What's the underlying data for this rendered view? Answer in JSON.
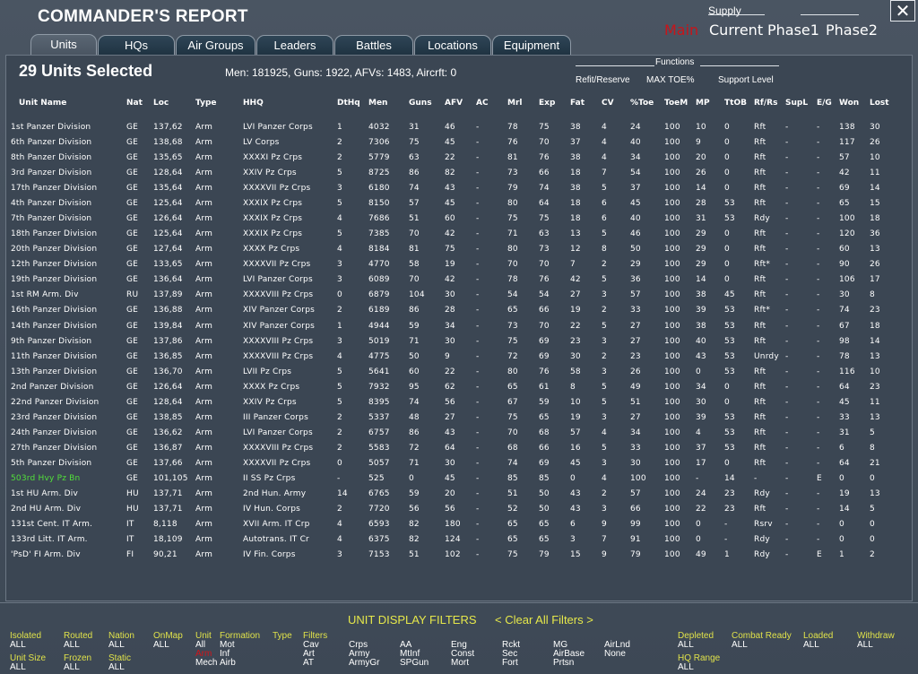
{
  "title": "COMMANDER'S REPORT",
  "supply": {
    "label": "Supply",
    "options": [
      {
        "label": "Main",
        "active": true
      },
      {
        "label": "Current",
        "active": false
      },
      {
        "label": "Phase1",
        "active": false
      },
      {
        "label": "Phase2",
        "active": false
      }
    ]
  },
  "close_label": "✕",
  "tabs": [
    {
      "label": "Units",
      "active": true
    },
    {
      "label": "HQs",
      "active": false
    },
    {
      "label": "Air Groups",
      "active": false
    },
    {
      "label": "Leaders",
      "active": false
    },
    {
      "label": "Battles",
      "active": false
    },
    {
      "label": "Locations",
      "active": false
    },
    {
      "label": "Equipment",
      "active": false
    }
  ],
  "selection": "29 Units Selected",
  "summary": "Men: 181925, Guns: 1922, AFVs: 1483, Aircrft: 0",
  "functions": {
    "label": "Functions",
    "options": [
      "Refit/Reserve",
      "MAX TOE%",
      "Support Level"
    ]
  },
  "columns": [
    "Unit Name",
    "Nat",
    "Loc",
    "Type",
    "HHQ",
    "DtHq",
    "Men",
    "Guns",
    "AFV",
    "AC",
    "Mrl",
    "Exp",
    "Fat",
    "CV",
    "%Toe",
    "ToeM",
    "MP",
    "TtOB",
    "Rf/Rs",
    "SupL",
    "E/G",
    "Won",
    "Lost"
  ],
  "rows": [
    [
      "1st Panzer Division",
      "GE",
      "137,62",
      "Arm",
      "LVI Panzer Corps",
      "1",
      "4032",
      "31",
      "46",
      "-",
      "78",
      "75",
      "38",
      "4",
      "24",
      "100",
      "10",
      "0",
      "Rft",
      "-",
      "-",
      "138",
      "30"
    ],
    [
      "6th Panzer Division",
      "GE",
      "138,68",
      "Arm",
      "LV Corps",
      "2",
      "7306",
      "75",
      "45",
      "-",
      "76",
      "70",
      "37",
      "4",
      "40",
      "100",
      "9",
      "0",
      "Rft",
      "-",
      "-",
      "117",
      "26"
    ],
    [
      "8th Panzer Division",
      "GE",
      "135,65",
      "Arm",
      "XXXXI Pz Crps",
      "2",
      "5779",
      "63",
      "22",
      "-",
      "81",
      "76",
      "38",
      "4",
      "34",
      "100",
      "20",
      "0",
      "Rft",
      "-",
      "-",
      "57",
      "10"
    ],
    [
      "3rd Panzer Division",
      "GE",
      "128,64",
      "Arm",
      "XXIV Pz Crps",
      "5",
      "8725",
      "86",
      "82",
      "-",
      "73",
      "66",
      "18",
      "7",
      "54",
      "100",
      "26",
      "0",
      "Rft",
      "-",
      "-",
      "42",
      "11"
    ],
    [
      "17th Panzer Division",
      "GE",
      "135,64",
      "Arm",
      "XXXXVII Pz Crps",
      "3",
      "6180",
      "74",
      "43",
      "-",
      "79",
      "74",
      "38",
      "5",
      "37",
      "100",
      "14",
      "0",
      "Rft",
      "-",
      "-",
      "69",
      "14"
    ],
    [
      "4th Panzer Division",
      "GE",
      "125,64",
      "Arm",
      "XXXIX Pz Crps",
      "5",
      "8150",
      "57",
      "45",
      "-",
      "80",
      "64",
      "18",
      "6",
      "45",
      "100",
      "28",
      "53",
      "Rft",
      "-",
      "-",
      "65",
      "15"
    ],
    [
      "7th Panzer Division",
      "GE",
      "126,64",
      "Arm",
      "XXXIX Pz Crps",
      "4",
      "7686",
      "51",
      "60",
      "-",
      "75",
      "75",
      "18",
      "6",
      "40",
      "100",
      "31",
      "53",
      "Rdy",
      "-",
      "-",
      "100",
      "18"
    ],
    [
      "18th Panzer Division",
      "GE",
      "125,64",
      "Arm",
      "XXXIX Pz Crps",
      "5",
      "7385",
      "70",
      "42",
      "-",
      "71",
      "63",
      "13",
      "5",
      "46",
      "100",
      "29",
      "0",
      "Rft",
      "-",
      "-",
      "120",
      "36"
    ],
    [
      "20th Panzer Division",
      "GE",
      "127,64",
      "Arm",
      "XXXX Pz Crps",
      "4",
      "8184",
      "81",
      "75",
      "-",
      "80",
      "73",
      "12",
      "8",
      "50",
      "100",
      "29",
      "0",
      "Rft",
      "-",
      "-",
      "60",
      "13"
    ],
    [
      "12th Panzer Division",
      "GE",
      "133,65",
      "Arm",
      "XXXXVII Pz Crps",
      "3",
      "4770",
      "58",
      "19",
      "-",
      "70",
      "70",
      "7",
      "2",
      "29",
      "100",
      "29",
      "0",
      "Rft*",
      "-",
      "-",
      "90",
      "26"
    ],
    [
      "19th Panzer Division",
      "GE",
      "136,64",
      "Arm",
      "LVI Panzer Corps",
      "3",
      "6089",
      "70",
      "42",
      "-",
      "78",
      "76",
      "42",
      "5",
      "36",
      "100",
      "14",
      "0",
      "Rft",
      "-",
      "-",
      "106",
      "17"
    ],
    [
      "1st RM Arm. Div",
      "RU",
      "137,89",
      "Arm",
      "XXXXVIII Pz Crps",
      "0",
      "6879",
      "104",
      "30",
      "-",
      "54",
      "54",
      "27",
      "3",
      "57",
      "100",
      "38",
      "45",
      "Rft",
      "-",
      "-",
      "30",
      "8"
    ],
    [
      "16th Panzer Division",
      "GE",
      "136,88",
      "Arm",
      "XIV Panzer Corps",
      "2",
      "6189",
      "86",
      "28",
      "-",
      "65",
      "66",
      "19",
      "2",
      "33",
      "100",
      "39",
      "53",
      "Rft*",
      "-",
      "-",
      "74",
      "23"
    ],
    [
      "14th Panzer Division",
      "GE",
      "139,84",
      "Arm",
      "XIV Panzer Corps",
      "1",
      "4944",
      "59",
      "34",
      "-",
      "73",
      "70",
      "22",
      "5",
      "27",
      "100",
      "38",
      "53",
      "Rft",
      "-",
      "-",
      "67",
      "18"
    ],
    [
      "9th Panzer Division",
      "GE",
      "137,86",
      "Arm",
      "XXXXVIII Pz Crps",
      "3",
      "5019",
      "71",
      "30",
      "-",
      "75",
      "69",
      "23",
      "3",
      "27",
      "100",
      "40",
      "53",
      "Rft",
      "-",
      "-",
      "98",
      "14"
    ],
    [
      "11th Panzer Division",
      "GE",
      "136,85",
      "Arm",
      "XXXXVIII Pz Crps",
      "4",
      "4775",
      "50",
      "9",
      "-",
      "72",
      "69",
      "30",
      "2",
      "23",
      "100",
      "43",
      "53",
      "Unrdy",
      "-",
      "-",
      "78",
      "13"
    ],
    [
      "13th Panzer Division",
      "GE",
      "136,70",
      "Arm",
      "LVII Pz Crps",
      "5",
      "5641",
      "60",
      "22",
      "-",
      "80",
      "76",
      "58",
      "3",
      "26",
      "100",
      "0",
      "53",
      "Rft",
      "-",
      "-",
      "116",
      "10"
    ],
    [
      "2nd Panzer Division",
      "GE",
      "126,64",
      "Arm",
      "XXXX Pz Crps",
      "5",
      "7932",
      "95",
      "62",
      "-",
      "65",
      "61",
      "8",
      "5",
      "49",
      "100",
      "34",
      "0",
      "Rft",
      "-",
      "-",
      "64",
      "23"
    ],
    [
      "22nd Panzer Division",
      "GE",
      "128,64",
      "Arm",
      "XXIV Pz Crps",
      "5",
      "8395",
      "74",
      "56",
      "-",
      "67",
      "59",
      "10",
      "5",
      "51",
      "100",
      "30",
      "0",
      "Rft",
      "-",
      "-",
      "45",
      "11"
    ],
    [
      "23rd Panzer Division",
      "GE",
      "138,85",
      "Arm",
      "III Panzer Corps",
      "2",
      "5337",
      "48",
      "27",
      "-",
      "75",
      "65",
      "19",
      "3",
      "27",
      "100",
      "39",
      "53",
      "Rft",
      "-",
      "-",
      "33",
      "13"
    ],
    [
      "24th Panzer Division",
      "GE",
      "136,62",
      "Arm",
      "LVI Panzer Corps",
      "2",
      "6757",
      "86",
      "43",
      "-",
      "70",
      "68",
      "57",
      "4",
      "34",
      "100",
      "4",
      "53",
      "Rft",
      "-",
      "-",
      "31",
      "5"
    ],
    [
      "27th Panzer Division",
      "GE",
      "136,87",
      "Arm",
      "XXXXVIII Pz Crps",
      "2",
      "5583",
      "72",
      "64",
      "-",
      "68",
      "66",
      "16",
      "5",
      "33",
      "100",
      "37",
      "53",
      "Rft",
      "-",
      "-",
      "6",
      "8"
    ],
    [
      "5th Panzer Division",
      "GE",
      "137,66",
      "Arm",
      "XXXXVII Pz Crps",
      "0",
      "5057",
      "71",
      "30",
      "-",
      "74",
      "69",
      "45",
      "3",
      "30",
      "100",
      "17",
      "0",
      "Rft",
      "-",
      "-",
      "64",
      "21"
    ],
    [
      "503rd Hvy Pz Bn",
      "GE",
      "101,105",
      "Arm",
      "II SS Pz Crps",
      "-",
      "525",
      "0",
      "45",
      "-",
      "85",
      "85",
      "0",
      "4",
      "100",
      "100",
      "-",
      "14",
      "-",
      "-",
      "E",
      "0",
      "0"
    ],
    [
      "1st HU Arm. Div",
      "HU",
      "137,71",
      "Arm",
      "2nd Hun. Army",
      "14",
      "6765",
      "59",
      "20",
      "-",
      "51",
      "50",
      "43",
      "2",
      "57",
      "100",
      "24",
      "23",
      "Rdy",
      "-",
      "-",
      "19",
      "13"
    ],
    [
      "2nd HU Arm. Div",
      "HU",
      "137,71",
      "Arm",
      "IV Hun. Corps",
      "2",
      "7720",
      "56",
      "56",
      "-",
      "52",
      "50",
      "43",
      "3",
      "66",
      "100",
      "22",
      "23",
      "Rft",
      "-",
      "-",
      "14",
      "5"
    ],
    [
      "131st Cent. IT Arm.",
      "IT",
      "8,118",
      "Arm",
      "XVII Arm. IT Crp",
      "4",
      "6593",
      "82",
      "180",
      "-",
      "65",
      "65",
      "6",
      "9",
      "99",
      "100",
      "0",
      "-",
      "Rsrv",
      "-",
      "-",
      "0",
      "0"
    ],
    [
      "133rd Litt. IT Arm.",
      "IT",
      "18,109",
      "Arm",
      "Autotrans. IT Cr",
      "4",
      "6375",
      "82",
      "124",
      "-",
      "65",
      "65",
      "3",
      "7",
      "91",
      "100",
      "0",
      "-",
      "Rdy",
      "-",
      "-",
      "0",
      "0"
    ],
    [
      "'PsD' FI Arm. Div",
      "FI",
      "90,21",
      "Arm",
      "IV Fin. Corps",
      "3",
      "7153",
      "51",
      "102",
      "-",
      "75",
      "79",
      "15",
      "9",
      "79",
      "100",
      "49",
      "1",
      "Rdy",
      "-",
      "E",
      "1",
      "2"
    ]
  ],
  "highlight_color": "#52e03a",
  "filters": {
    "title": "UNIT DISPLAY FILTERS",
    "clear": "< Clear All Filters >",
    "groups": [
      {
        "label": "Isolated",
        "values": [
          "ALL"
        ]
      },
      {
        "label": "Routed",
        "values": [
          "ALL"
        ]
      },
      {
        "label": "Nation",
        "values": [
          "ALL"
        ]
      },
      {
        "label": "OnMap",
        "values": [
          "ALL"
        ]
      },
      {
        "label": "Unit",
        "values": [
          "All",
          "Arm",
          "Mech"
        ]
      },
      {
        "label": "Formation",
        "values": [
          "Mot",
          "Inf",
          "Airb"
        ]
      },
      {
        "label": "Type",
        "values": []
      },
      {
        "label": "Filters",
        "values": [
          "Cav",
          "Art",
          "AT"
        ]
      },
      {
        "label": "",
        "values": [
          "Crps",
          "Army",
          "ArmyGr"
        ]
      },
      {
        "label": "",
        "values": [
          "AA",
          "MtInf",
          "SPGun"
        ]
      },
      {
        "label": "",
        "values": [
          "Eng",
          "Const",
          "Mort"
        ]
      },
      {
        "label": "",
        "values": [
          "Rckt",
          "Sec",
          "Fort"
        ]
      },
      {
        "label": "",
        "values": [
          "MG",
          "AirBase",
          "Prtsn"
        ]
      },
      {
        "label": "",
        "values": [
          "AirLnd",
          "None"
        ]
      },
      {
        "label": "Depleted",
        "values": [
          "ALL"
        ]
      },
      {
        "label": "Combat Ready",
        "values": [
          "ALL"
        ]
      },
      {
        "label": "Loaded",
        "values": [
          "ALL"
        ]
      },
      {
        "label": "Withdraw",
        "values": [
          "ALL"
        ]
      },
      {
        "label": "Unit Size",
        "values": [
          "ALL"
        ]
      },
      {
        "label": "Frozen",
        "values": [
          "ALL"
        ]
      },
      {
        "label": "Static",
        "values": [
          "ALL"
        ]
      },
      {
        "label": "HQ Range",
        "values": [
          "ALL"
        ]
      }
    ]
  }
}
